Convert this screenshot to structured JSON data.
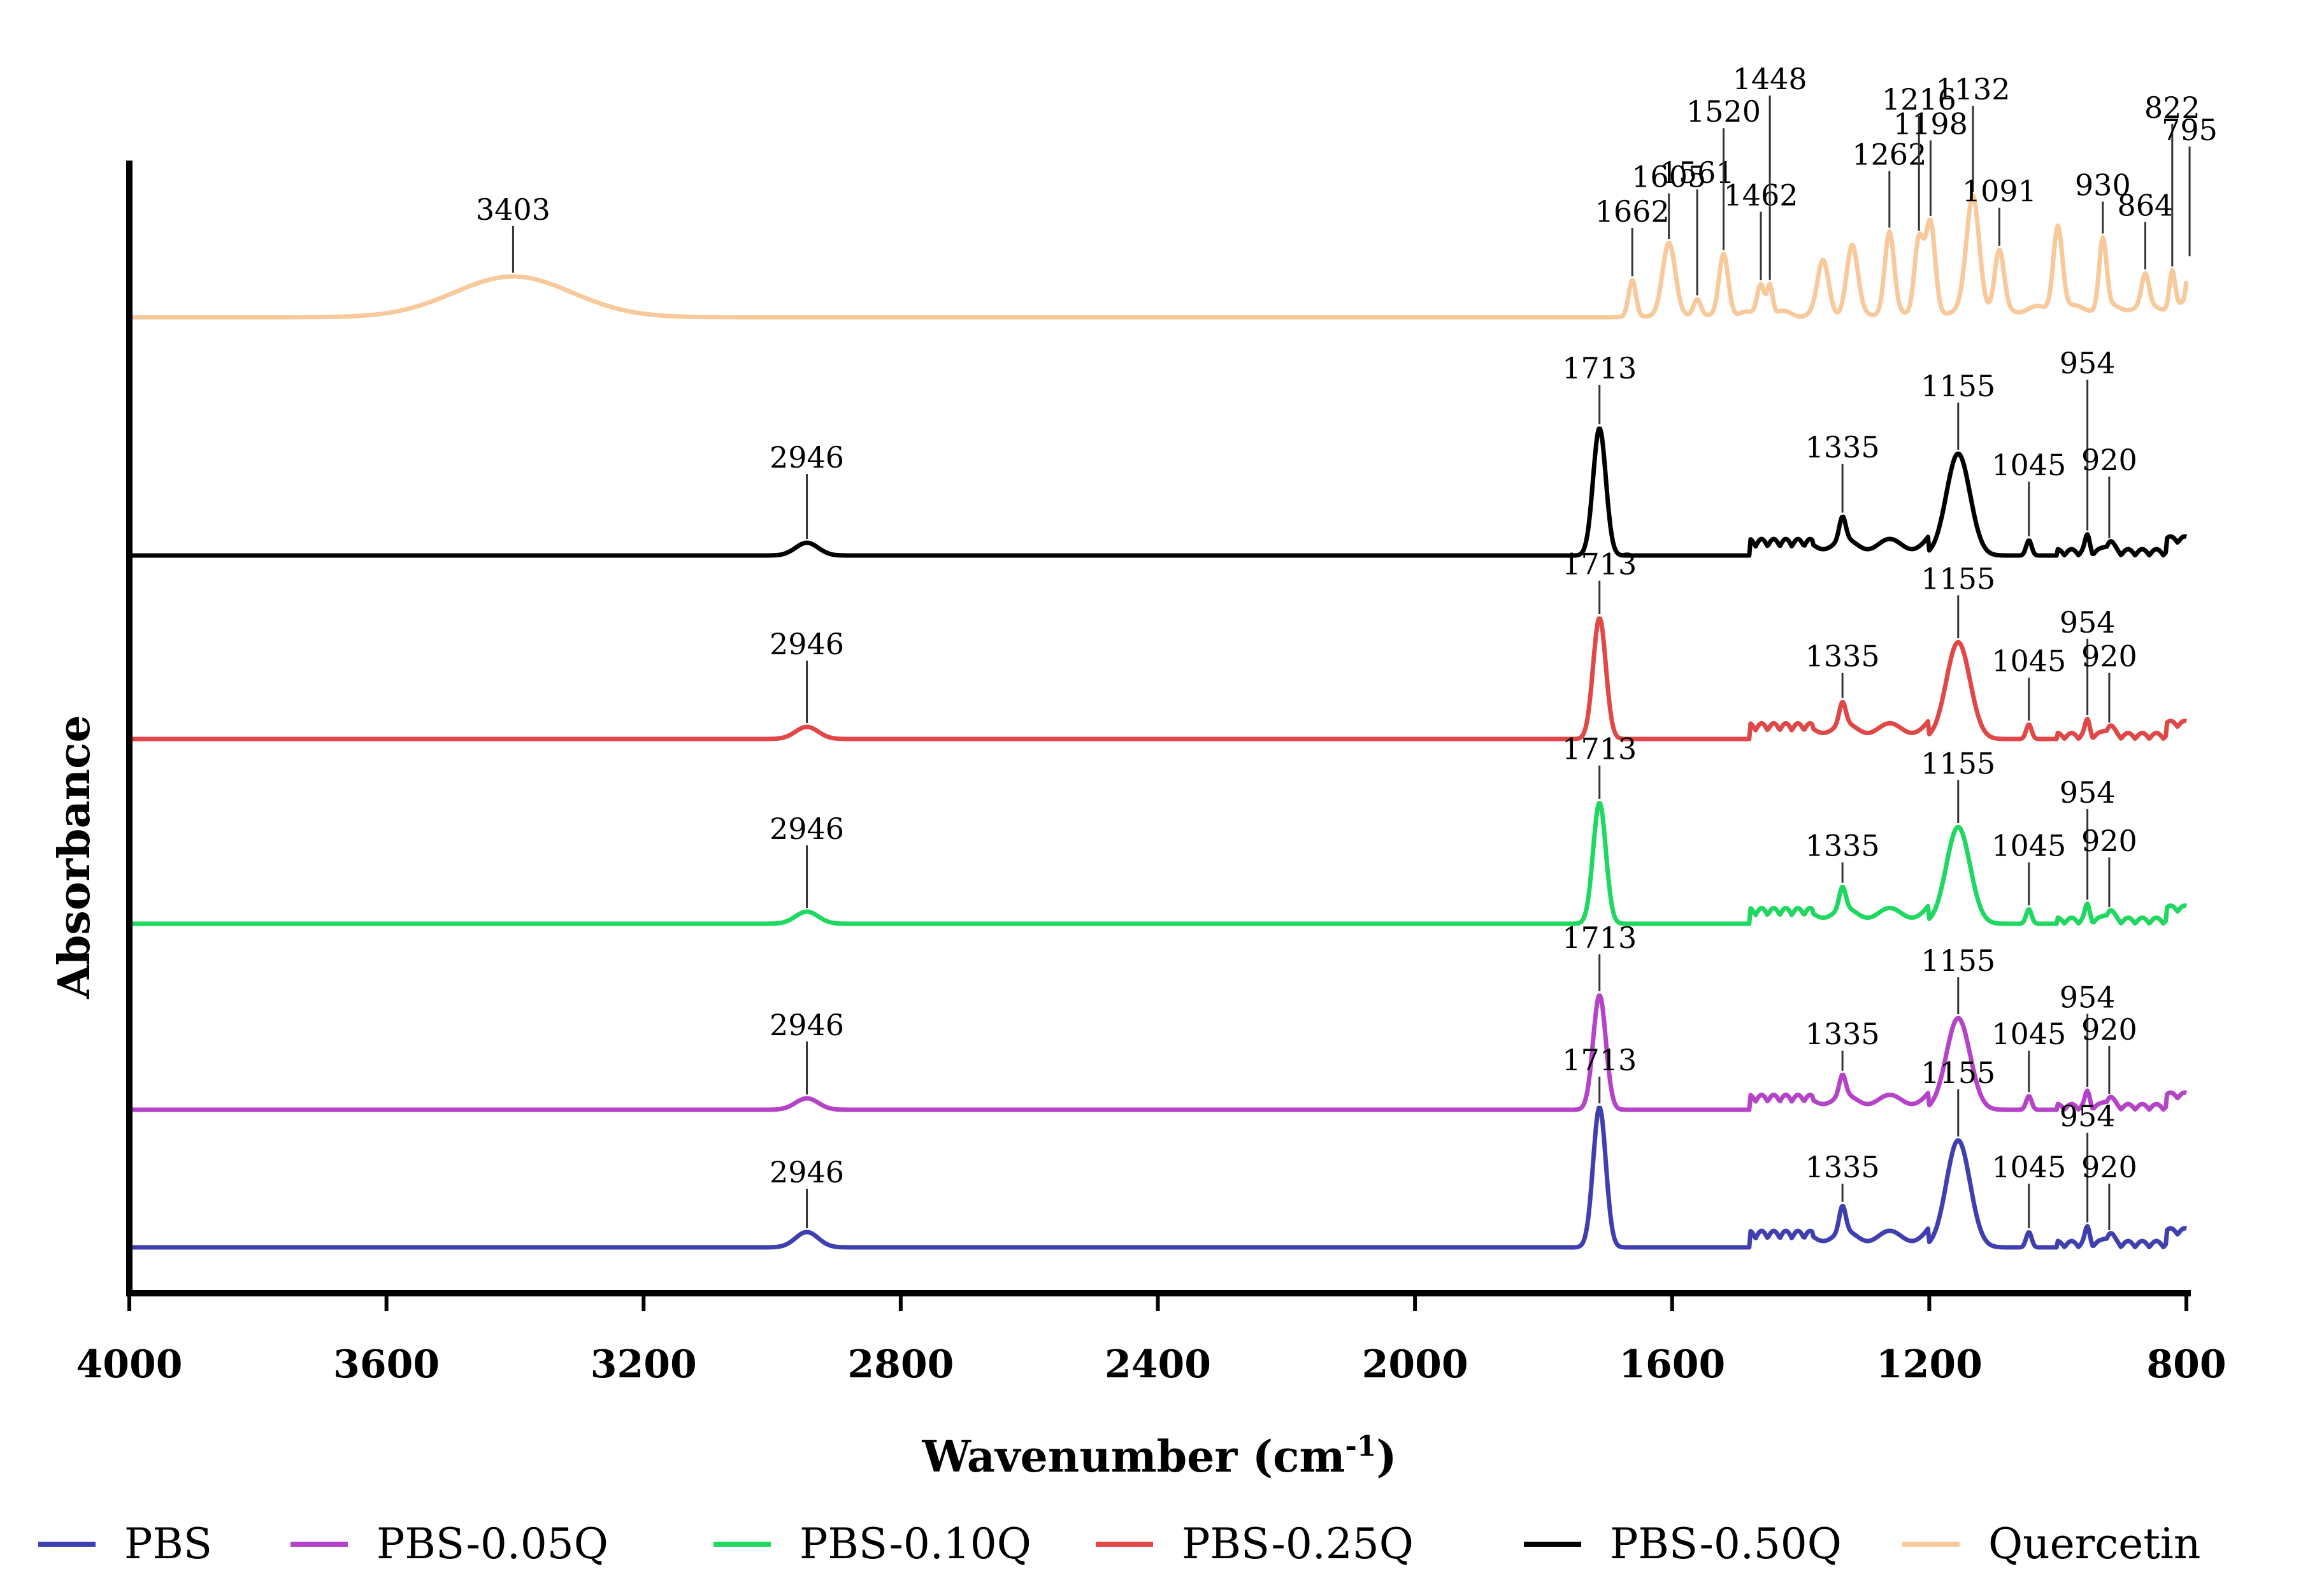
{
  "chart_data": {
    "type": "line",
    "title": "",
    "xlabel": "Wavenumber (cm",
    "xlabel_sup": "-1",
    "xlabel_close": ")",
    "ylabel": "Absorbance",
    "xlim": [
      4000,
      800
    ],
    "x_ticks": [
      "4000",
      "3600",
      "3200",
      "2800",
      "2400",
      "2000",
      "1600",
      "1200",
      "800"
    ],
    "y_ticks": [],
    "grid": false,
    "legend_position": "bottom",
    "series": [
      {
        "name": "PBS",
        "color": "#3f3faf",
        "baseline": "base",
        "peaks": [
          {
            "x": 2946,
            "h": 0.6,
            "w": 25,
            "label": "2946",
            "ly": 1.6
          },
          {
            "x": 1713,
            "h": 5.5,
            "w": 14,
            "label": "1713",
            "ly": 6.0
          },
          {
            "x": 1335,
            "h": 1.0,
            "w": 7,
            "label": "1335",
            "ly": 1.8
          },
          {
            "x": 1155,
            "h": 4.2,
            "w": 26,
            "label": "1155",
            "ly": 5.5
          },
          {
            "x": 1045,
            "h": 0.6,
            "w": 6,
            "label": "1045",
            "ly": 1.8
          },
          {
            "x": 954,
            "h": 0.6,
            "w": 5,
            "label": "954",
            "ly": 3.8
          },
          {
            "x": 920,
            "h": 0.4,
            "w": 9,
            "label": "920",
            "ly": 1.8
          }
        ]
      },
      {
        "name": "PBS-0.05Q",
        "color": "#b443c8",
        "baseline": "base",
        "peaks": [
          {
            "x": 2946,
            "h": 0.5,
            "w": 25,
            "label": "2946",
            "ly": 2.2
          },
          {
            "x": 1713,
            "h": 5.0,
            "w": 14,
            "label": "1713",
            "ly": 6.0
          },
          {
            "x": 1335,
            "h": 0.9,
            "w": 7,
            "label": "1335",
            "ly": 1.8
          },
          {
            "x": 1155,
            "h": 4.0,
            "w": 26,
            "label": "1155",
            "ly": 5.0
          },
          {
            "x": 1045,
            "h": 0.6,
            "w": 6,
            "label": "1045",
            "ly": 1.8
          },
          {
            "x": 954,
            "h": 0.6,
            "w": 5,
            "label": "954",
            "ly": 3.4
          },
          {
            "x": 920,
            "h": 0.4,
            "w": 9,
            "label": "920",
            "ly": 2.0
          }
        ]
      },
      {
        "name": "PBS-0.10Q",
        "color": "#1ed860",
        "baseline": "base",
        "peaks": [
          {
            "x": 2946,
            "h": 0.5,
            "w": 25,
            "label": "2946",
            "ly": 2.5
          },
          {
            "x": 1713,
            "h": 5.0,
            "w": 14,
            "label": "1713",
            "ly": 5.8
          },
          {
            "x": 1335,
            "h": 0.9,
            "w": 7,
            "label": "1335",
            "ly": 1.8
          },
          {
            "x": 1155,
            "h": 4.0,
            "w": 26,
            "label": "1155",
            "ly": 5.2
          },
          {
            "x": 1045,
            "h": 0.6,
            "w": 6,
            "label": "1045",
            "ly": 1.8
          },
          {
            "x": 954,
            "h": 0.6,
            "w": 5,
            "label": "954",
            "ly": 4.0
          },
          {
            "x": 920,
            "h": 0.4,
            "w": 9,
            "label": "920",
            "ly": 2.0
          }
        ]
      },
      {
        "name": "PBS-0.25Q",
        "color": "#e04848",
        "baseline": "base",
        "peaks": [
          {
            "x": 2946,
            "h": 0.5,
            "w": 25,
            "label": "2946",
            "ly": 2.5
          },
          {
            "x": 1713,
            "h": 5.0,
            "w": 14,
            "label": "1713",
            "ly": 5.8
          },
          {
            "x": 1335,
            "h": 0.9,
            "w": 7,
            "label": "1335",
            "ly": 2.0
          },
          {
            "x": 1155,
            "h": 4.0,
            "w": 26,
            "label": "1155",
            "ly": 5.2
          },
          {
            "x": 1045,
            "h": 0.6,
            "w": 6,
            "label": "1045",
            "ly": 1.8
          },
          {
            "x": 954,
            "h": 0.6,
            "w": 5,
            "label": "954",
            "ly": 3.4
          },
          {
            "x": 920,
            "h": 0.4,
            "w": 9,
            "label": "920",
            "ly": 2.0
          }
        ]
      },
      {
        "name": "PBS-0.50Q",
        "color": "#000000",
        "baseline": "base",
        "peaks": [
          {
            "x": 2946,
            "h": 0.5,
            "w": 25,
            "label": "2946",
            "ly": 2.5
          },
          {
            "x": 1713,
            "h": 5.0,
            "w": 14,
            "label": "1713",
            "ly": 6.0
          },
          {
            "x": 1335,
            "h": 0.9,
            "w": 7,
            "label": "1335",
            "ly": 2.9
          },
          {
            "x": 1155,
            "h": 4.0,
            "w": 26,
            "label": "1155",
            "ly": 5.3
          },
          {
            "x": 1045,
            "h": 0.6,
            "w": 6,
            "label": "1045",
            "ly": 2.2
          },
          {
            "x": 954,
            "h": 0.6,
            "w": 5,
            "label": "954",
            "ly": 6.2
          },
          {
            "x": 920,
            "h": 0.4,
            "w": 9,
            "label": "920",
            "ly": 2.4
          }
        ]
      },
      {
        "name": "Quercetin",
        "color": "#f7c99b",
        "baseline": "quercetin",
        "peaks": [
          {
            "x": 3403,
            "h": 2.0,
            "w": 130,
            "label": "3403",
            "ly": 3.6
          },
          {
            "x": 1662,
            "h": 1.8,
            "w": 8,
            "label": "1662",
            "ly": 3.5
          },
          {
            "x": 1605,
            "h": 3.6,
            "w": 14,
            "label": "1605",
            "ly": 5.2
          },
          {
            "x": 1561,
            "h": 0.8,
            "w": 8,
            "label": "1561",
            "ly": 5.4
          },
          {
            "x": 1520,
            "h": 3.0,
            "w": 10,
            "label": "1520",
            "ly": 8.4
          },
          {
            "x": 1462,
            "h": 1.6,
            "w": 8,
            "label": "1462",
            "ly": 4.3
          },
          {
            "x": 1448,
            "h": 1.5,
            "w": 6,
            "label": "1448",
            "ly": 10.0
          },
          {
            "x": 1365,
            "h": 2.5,
            "w": 12
          },
          {
            "x": 1320,
            "h": 3.2,
            "w": 12
          },
          {
            "x": 1262,
            "h": 3.8,
            "w": 10,
            "label": "1262",
            "ly": 6.3
          },
          {
            "x": 1216,
            "h": 3.6,
            "w": 10,
            "label": "1216",
            "ly": 9.0
          },
          {
            "x": 1198,
            "h": 4.2,
            "w": 10,
            "label": "1198",
            "ly": 7.8
          },
          {
            "x": 1132,
            "h": 5.6,
            "w": 14,
            "label": "1132",
            "ly": 9.5
          },
          {
            "x": 1091,
            "h": 2.8,
            "w": 10,
            "label": "1091",
            "ly": 4.5
          },
          {
            "x": 1000,
            "h": 4.2,
            "w": 10
          },
          {
            "x": 930,
            "h": 3.4,
            "w": 8,
            "label": "930",
            "ly": 4.8
          },
          {
            "x": 864,
            "h": 1.5,
            "w": 8,
            "label": "864",
            "ly": 3.8
          },
          {
            "x": 822,
            "h": 1.8,
            "w": 6,
            "label": "822",
            "ly": 8.6
          },
          {
            "x": 795,
            "h": 2.2,
            "w": 6,
            "label": "795",
            "ly": 7.5
          }
        ]
      }
    ]
  },
  "legend": {
    "items": [
      {
        "label": "PBS",
        "color": "#3f3faf"
      },
      {
        "label": "PBS-0.05Q",
        "color": "#b443c8"
      },
      {
        "label": "PBS-0.10Q",
        "color": "#1ed860"
      },
      {
        "label": "PBS-0.25Q",
        "color": "#e04848"
      },
      {
        "label": "PBS-0.50Q",
        "color": "#000000"
      },
      {
        "label": "Quercetin",
        "color": "#f7c99b"
      }
    ]
  }
}
